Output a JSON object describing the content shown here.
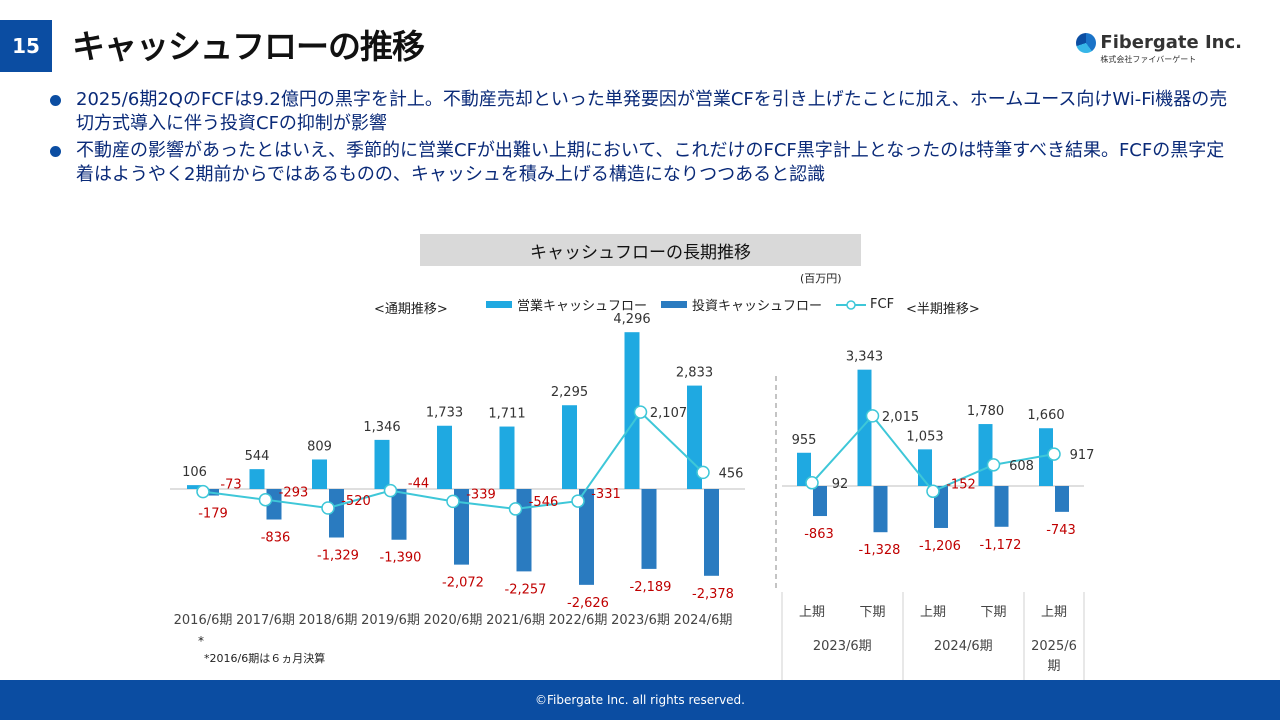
{
  "page_number": "15",
  "title": "キャッシュフローの推移",
  "logo": {
    "name": "Fibergate Inc.",
    "sub": "株式会社ファイバーゲート"
  },
  "bullets": [
    "2025/6期2QのFCFは9.2億円の黒字を計上。不動産売却といった単発要因が営業CFを引き上げたことに加え、ホームユース向けWi-Fi機器の売切方式導入に伴う投資CFの抑制が影響",
    "不動産の影響があったとはいえ、季節的に営業CFが出難い上期において、これだけのFCF黒字計上となったのは特筆すべき結果。FCFの黒字定着はようやく2期前からではあるものの、キャッシュを積み上げる構造になりつつあると認識"
  ],
  "chart_header": "キャッシュフローの長期推移",
  "unit": "(百万円)",
  "section_annual": "<通期推移>",
  "section_half": "<半期推移>",
  "legend": {
    "operating": "営業キャッシュフロー",
    "investing": "投資キャッシュフロー",
    "fcf": "FCF"
  },
  "colors": {
    "operating": "#1fa9e1",
    "investing": "#2a7bc0",
    "fcf": "#3ec7d8",
    "negative_label": "#c00000"
  },
  "footnote_star": "*",
  "footnote": "*2016/6期は６ヵ月決算",
  "footer": "©Fibergate Inc. all rights reserved.",
  "chart_data": [
    {
      "type": "bar",
      "title": "<通期推移>",
      "categories": [
        "2016/6期",
        "2017/6期",
        "2018/6期",
        "2019/6期",
        "2020/6期",
        "2021/6期",
        "2022/6期",
        "2023/6期",
        "2024/6期"
      ],
      "series": [
        {
          "name": "営業キャッシュフロー",
          "values": [
            106,
            544,
            809,
            1346,
            1733,
            1711,
            2295,
            4296,
            2833
          ]
        },
        {
          "name": "投資キャッシュフロー",
          "values": [
            -179,
            -836,
            -1329,
            -1390,
            -2072,
            -2257,
            -2626,
            -2189,
            -2378
          ]
        },
        {
          "name": "FCF",
          "type": "line",
          "values": [
            -73,
            -293,
            -520,
            -44,
            -339,
            -546,
            -331,
            2107,
            456
          ]
        }
      ]
    },
    {
      "type": "bar",
      "title": "<半期推移>",
      "categories": [
        "上期",
        "下期",
        "上期",
        "下期",
        "上期"
      ],
      "groups": [
        {
          "label": "2023/6期",
          "span": 2
        },
        {
          "label": "2024/6期",
          "span": 2
        },
        {
          "label": "2025/6期",
          "span": 1
        }
      ],
      "series": [
        {
          "name": "営業キャッシュフロー",
          "values": [
            955,
            3343,
            1053,
            1780,
            1660
          ]
        },
        {
          "name": "投資キャッシュフロー",
          "values": [
            -863,
            -1328,
            -1206,
            -1172,
            -743
          ]
        },
        {
          "name": "FCF",
          "type": "line",
          "values": [
            92,
            2015,
            -152,
            608,
            917
          ]
        }
      ]
    }
  ]
}
